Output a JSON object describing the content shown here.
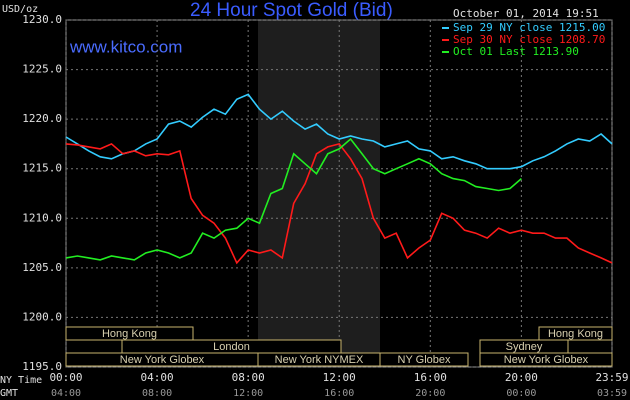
{
  "chart_data": {
    "type": "line",
    "title": "24 Hour Spot Gold (Bid)",
    "y_unit": "USD/oz",
    "site": "www.kitco.com",
    "timestamp": "October 01, 2014 19:51",
    "x_row_labels": [
      "NY Time",
      "GMT"
    ],
    "x": [
      0,
      0.5,
      1,
      1.5,
      2,
      2.5,
      3,
      3.5,
      4,
      4.5,
      5,
      5.5,
      6,
      6.5,
      7,
      7.5,
      8,
      8.5,
      9,
      9.5,
      10,
      10.5,
      11,
      11.5,
      12,
      12.5,
      13,
      13.5,
      14,
      14.5,
      15,
      15.5,
      16,
      16.5,
      17,
      17.5,
      18,
      18.5,
      19,
      19.5,
      20,
      20.5,
      21,
      21.5,
      22,
      22.5,
      23,
      23.5,
      23.98
    ],
    "series": [
      {
        "name": "Sep 29 NY close 1215.00",
        "color": "#33ccff",
        "values": [
          1218.2,
          1217.5,
          1216.8,
          1216.2,
          1216.0,
          1216.5,
          1216.8,
          1217.5,
          1218.0,
          1219.5,
          1219.8,
          1219.2,
          1220.2,
          1221.0,
          1220.5,
          1222.0,
          1222.5,
          1221.0,
          1220.0,
          1220.8,
          1219.8,
          1219.0,
          1219.5,
          1218.5,
          1218.0,
          1218.3,
          1218.0,
          1217.8,
          1217.2,
          1217.5,
          1217.8,
          1217.0,
          1216.8,
          1216.0,
          1216.2,
          1215.8,
          1215.5,
          1215.0,
          1215.0,
          1215.0,
          1215.2,
          1215.8,
          1216.2,
          1216.8,
          1217.5,
          1218.0,
          1217.8,
          1218.5,
          1217.5
        ]
      },
      {
        "name": "Sep 30 NY close 1208.70",
        "color": "#ff1a1a",
        "values": [
          1217.5,
          1217.4,
          1217.2,
          1217.0,
          1217.5,
          1216.5,
          1216.8,
          1216.3,
          1216.5,
          1216.4,
          1216.8,
          1212.0,
          1210.3,
          1209.5,
          1208.0,
          1205.5,
          1206.8,
          1206.5,
          1206.8,
          1206.0,
          1211.5,
          1213.5,
          1216.5,
          1217.2,
          1217.5,
          1216.0,
          1214.0,
          1210.0,
          1208.0,
          1208.5,
          1206.0,
          1207.0,
          1207.8,
          1210.5,
          1210.0,
          1208.8,
          1208.5,
          1208.0,
          1209.0,
          1208.5,
          1208.8,
          1208.5,
          1208.5,
          1208.0,
          1208.0,
          1207.0,
          1206.5,
          1206.0,
          1205.5
        ]
      },
      {
        "name": "Oct 01 Last 1213.90",
        "color": "#22ee22",
        "values": [
          1206.0,
          1206.2,
          1206.0,
          1205.8,
          1206.2,
          1206.0,
          1205.8,
          1206.5,
          1206.8,
          1206.5,
          1206.0,
          1206.5,
          1208.5,
          1208.0,
          1208.8,
          1209.0,
          1210.0,
          1209.5,
          1212.5,
          1213.0,
          1216.5,
          1215.5,
          1214.5,
          1216.5,
          1217.0,
          1218.0,
          1216.5,
          1215.0,
          1214.5,
          1215.0,
          1215.5,
          1216.0,
          1215.5,
          1214.5,
          1214.0,
          1213.8,
          1213.2,
          1213.0,
          1212.8,
          1213.0,
          1214.0,
          null,
          null,
          null,
          null,
          null,
          null,
          null,
          null
        ]
      }
    ],
    "xlim": [
      0,
      23.98
    ],
    "xticks": [
      {
        "value": 0,
        "label": "00:00"
      },
      {
        "value": 4,
        "label": "04:00"
      },
      {
        "value": 8,
        "label": "08:00"
      },
      {
        "value": 12,
        "label": "12:00"
      },
      {
        "value": 16,
        "label": "16:00"
      },
      {
        "value": 20,
        "label": "20:00"
      },
      {
        "value": 23.98,
        "label": "23:59"
      }
    ],
    "gmt_tick_labels": [
      "04:00",
      "08:00",
      "12:00",
      "16:00",
      "20:00",
      "00:00",
      "03:59"
    ],
    "ylim": [
      1195,
      1230
    ],
    "yticks": [
      {
        "value": 1195,
        "label": "1195.0"
      },
      {
        "value": 1200,
        "label": "1200.0"
      },
      {
        "value": 1205,
        "label": "1205.0"
      },
      {
        "value": 1210,
        "label": "1210.0"
      },
      {
        "value": 1215,
        "label": "1215.0"
      },
      {
        "value": 1220,
        "label": "1220.0"
      },
      {
        "value": 1225,
        "label": "1225.0"
      },
      {
        "value": 1230,
        "label": "1230.0"
      }
    ],
    "grid": true,
    "sessions": [
      "Hong Kong",
      "London",
      "New York Globex",
      "New York NYMEX",
      "NY Globex",
      "Sydney",
      "New York Globex",
      "Hong Kong"
    ]
  }
}
